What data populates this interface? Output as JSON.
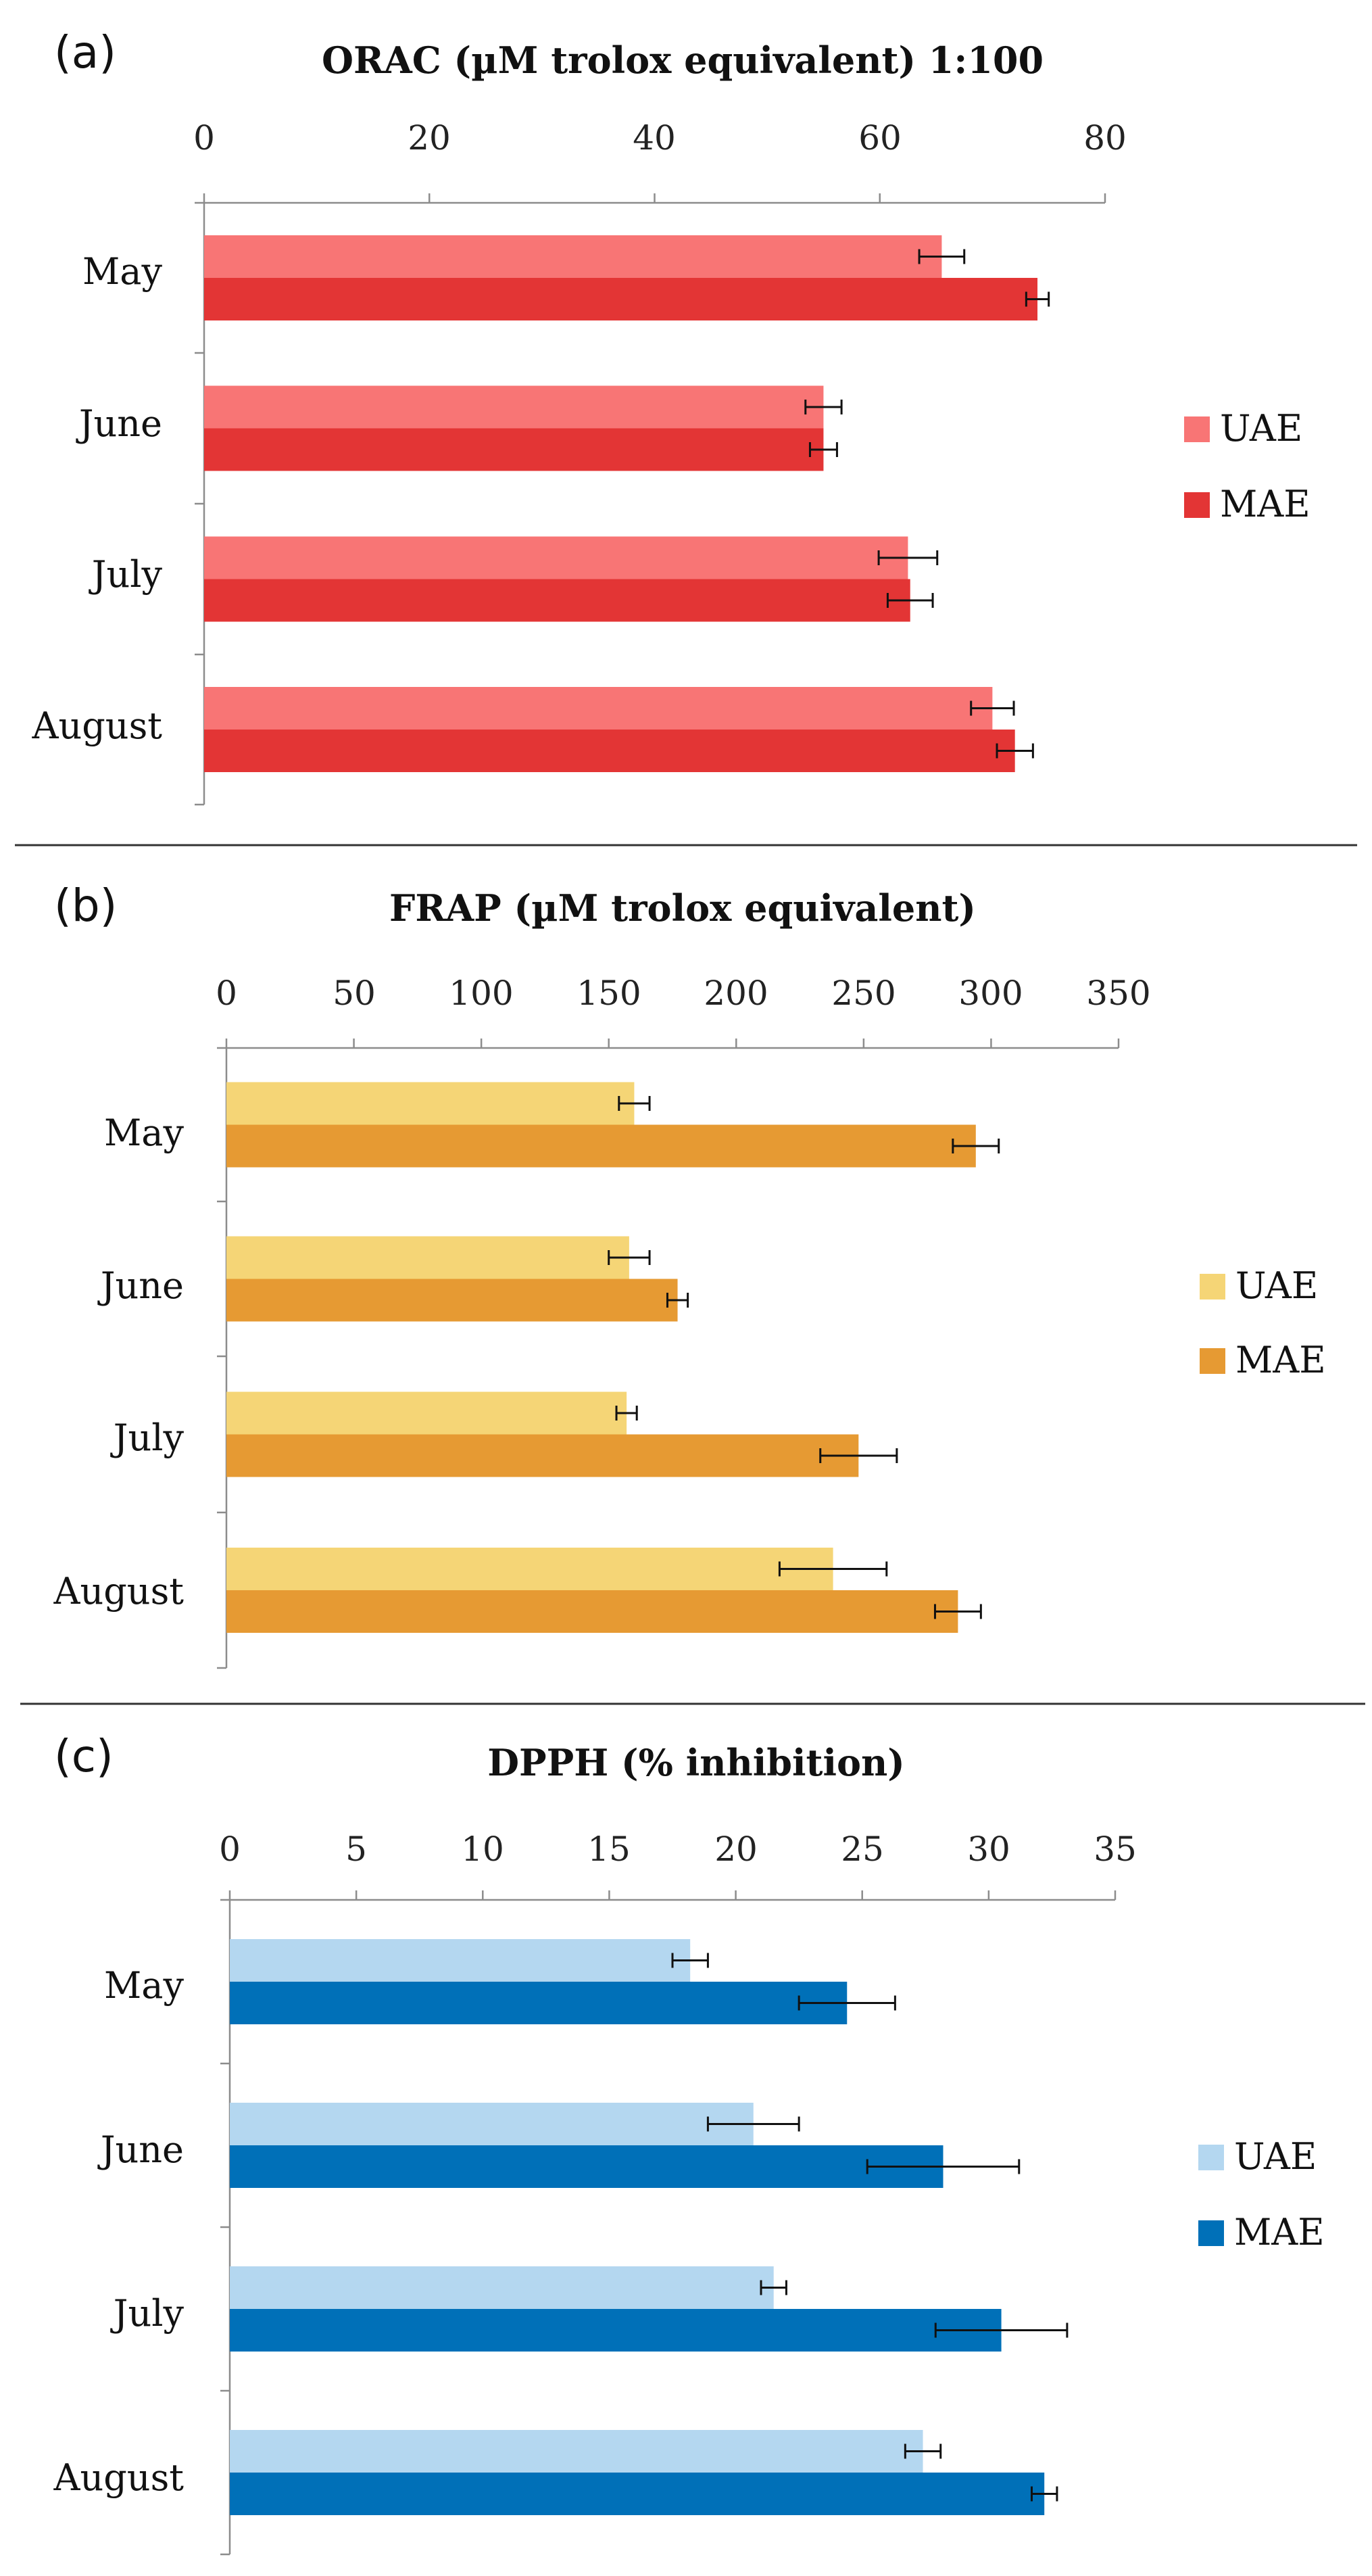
{
  "chart_data": [
    {
      "type": "bar",
      "orientation": "horizontal",
      "panel_label": "(a)",
      "title": "ORAC (µM trolox equivalent)  1:100",
      "categories": [
        "May",
        "June",
        "July",
        "August"
      ],
      "xlim": [
        0,
        80
      ],
      "ticks": [
        0,
        20,
        40,
        60,
        80
      ],
      "series": [
        {
          "name": "UAE",
          "color": "#f87575",
          "values": [
            65.5,
            55,
            62.5,
            70
          ],
          "errors": [
            2,
            1.6,
            2.6,
            1.9
          ]
        },
        {
          "name": "MAE",
          "color": "#e33535",
          "values": [
            74,
            55,
            62.7,
            72
          ],
          "errors": [
            1,
            1.2,
            2,
            1.6
          ]
        }
      ],
      "legend_position": "right"
    },
    {
      "type": "bar",
      "orientation": "horizontal",
      "panel_label": "(b)",
      "title": "FRAP (µM trolox equivalent)",
      "categories": [
        "May",
        "June",
        "July",
        "August"
      ],
      "xlim": [
        0,
        350
      ],
      "ticks": [
        0,
        50,
        100,
        150,
        200,
        250,
        300,
        350
      ],
      "series": [
        {
          "name": "UAE",
          "color": "#f5d576",
          "values": [
            160,
            158,
            157,
            238
          ],
          "errors": [
            6,
            8,
            4,
            21
          ]
        },
        {
          "name": "MAE",
          "color": "#e69a33",
          "values": [
            294,
            177,
            248,
            287
          ],
          "errors": [
            9,
            4,
            15,
            9
          ]
        }
      ],
      "legend_position": "right"
    },
    {
      "type": "bar",
      "orientation": "horizontal",
      "panel_label": "(c)",
      "title": "DPPH (% inhibition)",
      "categories": [
        "May",
        "June",
        "July",
        "August"
      ],
      "xlim": [
        0,
        35
      ],
      "ticks": [
        0,
        5,
        10,
        15,
        20,
        25,
        30,
        35
      ],
      "series": [
        {
          "name": "UAE",
          "color": "#b4d7f0",
          "values": [
            18.2,
            20.7,
            21.5,
            27.4
          ],
          "errors": [
            0.7,
            1.8,
            0.5,
            0.7
          ]
        },
        {
          "name": "MAE",
          "color": "#0070b8",
          "values": [
            24.4,
            28.2,
            30.5,
            32.2
          ],
          "errors": [
            1.9,
            3,
            2.6,
            0.5
          ]
        }
      ],
      "legend_position": "right"
    }
  ]
}
